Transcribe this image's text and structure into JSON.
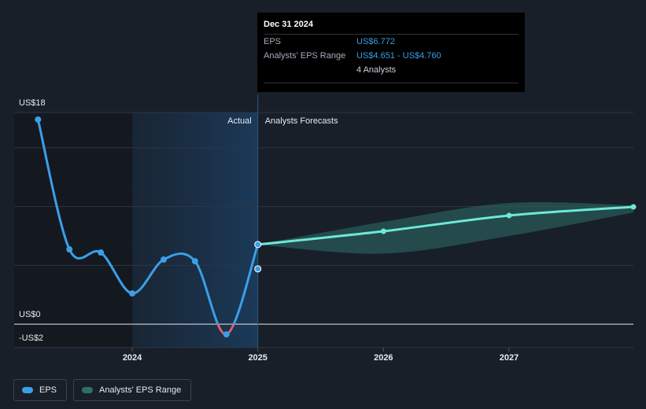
{
  "chart_data": {
    "type": "line",
    "xlim": [
      2023.06,
      2027.99
    ],
    "xticks": [
      2024,
      2025,
      2026,
      2027
    ],
    "ylim": [
      -2,
      18
    ],
    "yticks": [
      {
        "value": -2,
        "label": "-US$2"
      },
      {
        "value": 0,
        "label": "US$0"
      },
      {
        "value": 5,
        "label": null
      },
      {
        "value": 10,
        "label": null
      },
      {
        "value": 15,
        "label": null
      },
      {
        "value": 18,
        "label": "US$18"
      }
    ],
    "grid": true,
    "highlight": [
      2024,
      2025
    ],
    "forecast_start": 2025,
    "region_labels": [
      "Actual",
      "Analysts Forecasts"
    ],
    "series": [
      {
        "name": "EPS",
        "color": "#3a9fe8",
        "negative_color": "#e0606a",
        "x": [
          2023.25,
          2023.5,
          2023.75,
          2024.0,
          2024.25,
          2024.5,
          2024.75,
          2025.0
        ],
        "values": [
          17.4,
          6.36,
          6.09,
          2.61,
          5.49,
          5.35,
          -0.87,
          6.772
        ]
      }
    ],
    "forecast": {
      "color": "#6ee8d6",
      "x": [
        2025.0,
        2026.0,
        2027.0,
        2027.99
      ],
      "values": [
        6.772,
        7.9,
        9.24,
        9.97
      ]
    },
    "range": {
      "name": "Analysts' EPS Range",
      "color": "#2f6e6a",
      "x": [
        2025.0,
        2026.0,
        2027.0,
        2027.99
      ],
      "low": [
        6.772,
        6.0,
        7.5,
        9.5
      ],
      "high": [
        6.772,
        8.7,
        10.3,
        10.1
      ]
    },
    "consensus": {
      "x": 2025.0,
      "value": 4.7
    },
    "tooltip": {
      "date": "Dec 31 2024",
      "eps_label": "EPS",
      "eps_value": "US$6.772",
      "range_label": "Analysts' EPS Range",
      "range_value": "US$4.651 - US$4.760",
      "analysts": "4 Analysts"
    }
  }
}
